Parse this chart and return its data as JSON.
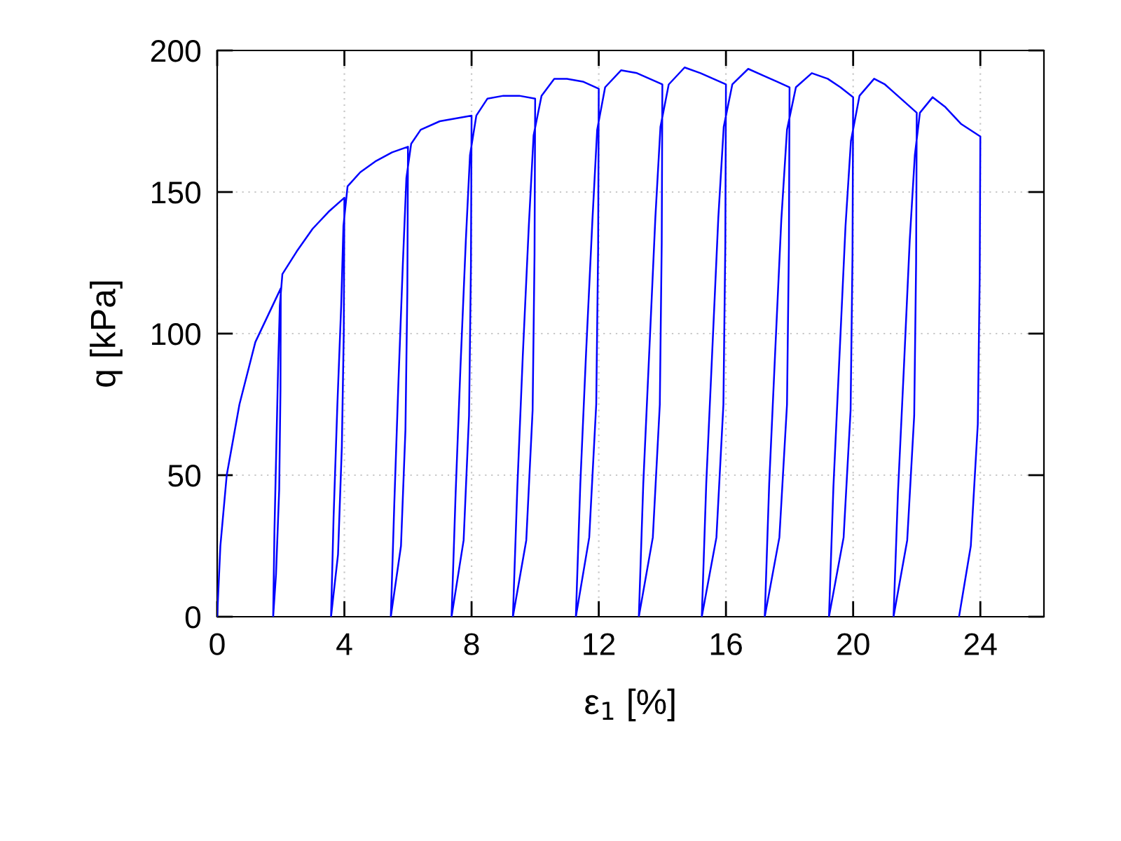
{
  "chart_data": {
    "type": "line",
    "xlabel": "ε$_{1}$ [%]",
    "ylabel": "q [kPa]",
    "xlim": [
      0,
      26
    ],
    "ylim": [
      0,
      200
    ],
    "xticks": [
      0,
      4,
      8,
      12,
      16,
      20,
      24
    ],
    "yticks": [
      0,
      50,
      100,
      150,
      200
    ],
    "grid": true,
    "marker": "none",
    "line_style": "solid",
    "series": [
      {
        "color": "#0000ff",
        "x": [
          0,
          0.1,
          0.3,
          0.7,
          1.2,
          2.0,
          1.99,
          1.95,
          1.85,
          1.76,
          1.8,
          1.86,
          1.92,
          1.97,
          2.05,
          2.5,
          3.0,
          3.5,
          4.0,
          3.98,
          3.92,
          3.8,
          3.58,
          3.66,
          3.78,
          3.9,
          3.97,
          4.1,
          4.5,
          5.0,
          5.5,
          6.0,
          5.98,
          5.92,
          5.78,
          5.46,
          5.57,
          5.7,
          5.84,
          5.95,
          6.1,
          6.4,
          7.0,
          7.5,
          8.0,
          7.98,
          7.92,
          7.75,
          7.37,
          7.5,
          7.65,
          7.82,
          7.95,
          8.15,
          8.5,
          9.0,
          9.5,
          10.0,
          9.98,
          9.92,
          9.72,
          9.3,
          9.44,
          9.61,
          9.8,
          9.95,
          10.2,
          10.6,
          11.0,
          11.5,
          12.0,
          11.98,
          11.92,
          11.7,
          11.28,
          11.42,
          11.6,
          11.8,
          11.95,
          12.2,
          12.7,
          13.2,
          13.6,
          14.0,
          13.98,
          13.92,
          13.7,
          13.26,
          13.4,
          13.59,
          13.78,
          13.94,
          14.2,
          14.7,
          15.2,
          15.6,
          16.0,
          15.98,
          15.92,
          15.7,
          15.24,
          15.38,
          15.57,
          15.76,
          15.93,
          16.2,
          16.7,
          17.2,
          17.6,
          18.0,
          17.98,
          17.92,
          17.68,
          17.22,
          17.36,
          17.55,
          17.74,
          17.92,
          18.2,
          18.7,
          19.2,
          19.6,
          20.0,
          19.98,
          19.92,
          19.7,
          19.24,
          19.38,
          19.57,
          19.76,
          19.93,
          20.2,
          20.66,
          21.0,
          21.5,
          22.0,
          21.98,
          21.92,
          21.7,
          21.27,
          21.41,
          21.6,
          21.78,
          21.94,
          22.1,
          22.5,
          22.9,
          23.4,
          24.0,
          23.98,
          23.92,
          23.7,
          23.33
        ],
        "values": [
          0,
          25,
          50,
          75,
          97,
          116,
          80,
          45,
          15,
          0,
          30,
          60,
          90,
          110,
          121,
          129,
          137,
          143,
          148,
          100,
          60,
          22,
          0,
          35,
          75,
          110,
          138,
          152,
          157,
          161,
          164,
          166,
          115,
          66,
          25,
          0,
          40,
          83,
          125,
          155,
          167,
          172,
          175,
          176,
          177,
          124,
          71,
          27,
          0,
          44,
          88,
          133,
          163,
          177,
          183,
          184,
          184,
          183,
          128,
          73,
          27,
          0,
          46,
          92,
          138,
          170,
          184,
          190,
          190,
          189,
          186.5,
          130,
          75,
          28,
          0,
          47,
          93,
          140,
          172,
          187,
          193,
          192,
          190,
          188,
          132,
          75,
          28,
          0,
          47,
          94,
          141,
          173,
          188,
          194,
          192,
          190,
          188,
          132,
          75,
          28,
          0,
          47,
          94,
          141,
          173,
          188,
          193.5,
          191,
          189,
          187,
          131,
          75,
          28,
          0,
          47,
          94,
          140,
          172,
          187,
          192,
          190,
          187,
          183.5,
          128,
          73,
          28,
          0,
          46,
          92,
          138,
          168,
          184,
          190,
          188,
          183,
          178,
          125,
          71,
          27,
          0,
          44,
          89,
          133,
          163,
          178,
          183.5,
          180,
          174,
          169.6,
          120,
          68,
          25,
          0
        ]
      }
    ]
  }
}
